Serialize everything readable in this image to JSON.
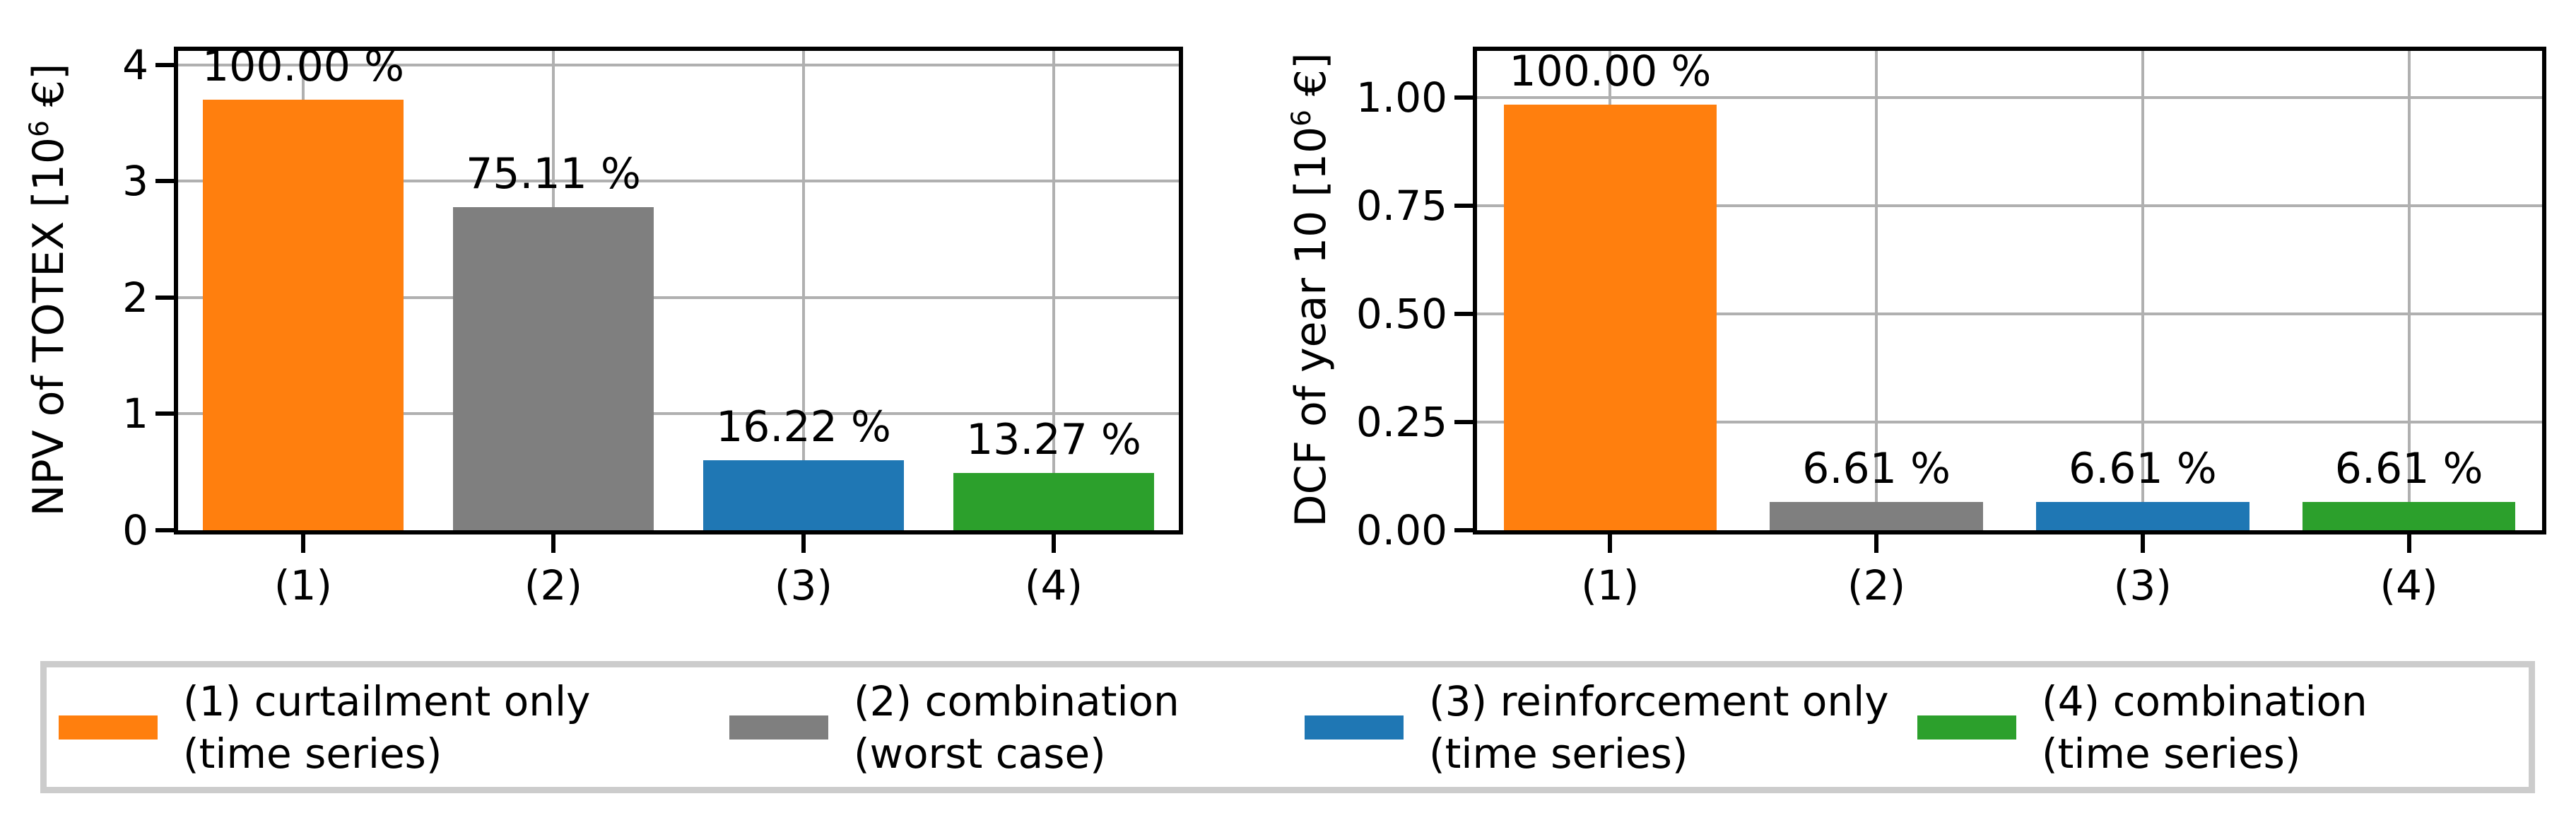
{
  "style": {
    "background": "#ffffff",
    "grid_color": "#b0b0b0",
    "spine_color": "#000000",
    "text_color": "#000000",
    "legend_border_color": "#cccccc"
  },
  "chart_data": [
    {
      "type": "bar",
      "title": "",
      "xlabel": "",
      "ylabel_pre": "NPV of TOTEX [10",
      "ylabel_sup": "6",
      "ylabel_post": " €]",
      "categories": [
        "(1)",
        "(2)",
        "(3)",
        "(4)"
      ],
      "values": [
        3.7,
        2.78,
        0.6,
        0.49
      ],
      "bar_labels": [
        "100.00 %",
        "75.11 %",
        "16.22 %",
        "13.27 %"
      ],
      "bar_colors": [
        "#ff7f0e",
        "#7f7f7f",
        "#1f77b4",
        "#2ca02c"
      ],
      "yticks": [
        0,
        1,
        2,
        3,
        4
      ],
      "ytick_labels": [
        "0",
        "1",
        "2",
        "3",
        "4"
      ],
      "ylim": [
        0,
        4.12
      ],
      "grid": true,
      "legend_position": "bottom"
    },
    {
      "type": "bar",
      "title": "",
      "xlabel": "",
      "ylabel_pre": "DCF of year 10 [10",
      "ylabel_sup": "6",
      "ylabel_post": " €]",
      "categories": [
        "(1)",
        "(2)",
        "(3)",
        "(4)"
      ],
      "values": [
        0.984,
        0.065,
        0.065,
        0.065
      ],
      "bar_labels": [
        "100.00 %",
        "6.61 %",
        "6.61 %",
        "6.61 %"
      ],
      "bar_colors": [
        "#ff7f0e",
        "#7f7f7f",
        "#1f77b4",
        "#2ca02c"
      ],
      "yticks": [
        0,
        0.25,
        0.5,
        0.75,
        1.0
      ],
      "ytick_labels": [
        "0.00",
        "0.25",
        "0.50",
        "0.75",
        "1.00"
      ],
      "ylim": [
        0,
        1.108
      ],
      "grid": true,
      "legend_position": "bottom"
    }
  ],
  "legend": {
    "items": [
      {
        "label_line1": "(1) curtailment only",
        "label_line2": "(time series)",
        "color": "#ff7f0e"
      },
      {
        "label_line1": "(2) combination",
        "label_line2": "(worst case)",
        "color": "#7f7f7f"
      },
      {
        "label_line1": "(3) reinforcement only",
        "label_line2": "(time series)",
        "color": "#1f77b4"
      },
      {
        "label_line1": "(4) combination",
        "label_line2": "(time series)",
        "color": "#2ca02c"
      }
    ]
  }
}
